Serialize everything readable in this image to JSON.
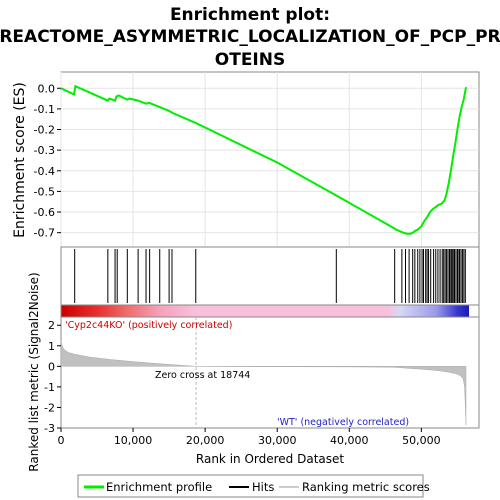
{
  "chart_data": {
    "type": "line",
    "title_lines": [
      "Enrichment plot:",
      "REACTOME_ASYMMETRIC_LOCALIZATION_OF_PCP_PR",
      "OTEINS"
    ],
    "ylabel_es": "Enrichment score (ES)",
    "ylabel_metric": "Ranked list metric (Signal2Noise)",
    "xlabel": "Rank in Ordered Dataset",
    "xlim": [
      0,
      58000
    ],
    "es_ylim": [
      -0.75,
      0.04
    ],
    "metric_ylim": [
      -3,
      2.4
    ],
    "x_ticks": [
      0,
      10000,
      20000,
      30000,
      40000,
      50000
    ],
    "x_tick_labels": [
      "0",
      "10,000",
      "20,000",
      "30,000",
      "40,000",
      "50,000"
    ],
    "es_ticks": [
      0.0,
      -0.1,
      -0.2,
      -0.3,
      -0.4,
      -0.5,
      -0.6,
      -0.7
    ],
    "es_tick_labels": [
      "0.0",
      "-0.1",
      "-0.2",
      "-0.3",
      "-0.4",
      "-0.5",
      "-0.6",
      "-0.7"
    ],
    "metric_ticks": [
      2,
      1,
      0,
      -1,
      -2,
      -3
    ],
    "metric_tick_labels": [
      "2",
      "1",
      "0",
      "-1",
      "-2",
      "-3"
    ],
    "series": [
      {
        "name": "Enrichment profile",
        "color": "#00ee00",
        "x": [
          0,
          1800,
          2000,
          6500,
          6700,
          7500,
          7700,
          8000,
          9200,
          9500,
          10700,
          11800,
          12200,
          15000,
          15500,
          18800,
          30000,
          38200,
          46300,
          46500,
          47500,
          48000,
          48500,
          48800,
          49200,
          49500,
          50000,
          50400,
          50800,
          51200,
          51600,
          52000,
          52400,
          52800,
          53200,
          53500,
          53800,
          54100,
          54400,
          54700,
          55000,
          55300,
          55600,
          55900,
          56200
        ],
        "y": [
          0.0,
          -0.03,
          0.01,
          -0.06,
          -0.05,
          -0.06,
          -0.04,
          -0.035,
          -0.055,
          -0.05,
          -0.06,
          -0.075,
          -0.07,
          -0.11,
          -0.12,
          -0.17,
          -0.36,
          -0.52,
          -0.68,
          -0.685,
          -0.7,
          -0.705,
          -0.705,
          -0.7,
          -0.69,
          -0.685,
          -0.67,
          -0.645,
          -0.625,
          -0.6,
          -0.585,
          -0.575,
          -0.565,
          -0.56,
          -0.545,
          -0.51,
          -0.46,
          -0.4,
          -0.33,
          -0.27,
          -0.2,
          -0.14,
          -0.09,
          -0.05,
          0.005
        ]
      }
    ],
    "hits": [
      1900,
      6500,
      7500,
      7800,
      9200,
      10700,
      11800,
      12300,
      13700,
      15000,
      15400,
      18700,
      38200,
      46300,
      47300,
      47800,
      48300,
      48800,
      49100,
      49500,
      49800,
      50100,
      50300,
      50600,
      50800,
      51000,
      51300,
      51700,
      52000,
      52300,
      52600,
      52900,
      53100,
      53300,
      53500,
      53700,
      53900,
      54000,
      54200,
      54300,
      54500,
      54600,
      54800,
      55000,
      55100,
      55300,
      55500,
      55700,
      55900,
      56100
    ],
    "metric_curve": {
      "x": [
        0,
        200,
        500,
        1000,
        2000,
        4000,
        7000,
        10000,
        14000,
        18744,
        22000,
        30000,
        40000,
        46000,
        46500,
        48000,
        50000,
        52000,
        53000,
        54000,
        54800,
        55400,
        55800,
        56000,
        56200
      ],
      "y": [
        1.25,
        0.95,
        0.8,
        0.68,
        0.58,
        0.45,
        0.33,
        0.23,
        0.12,
        0.0,
        -0.01,
        -0.02,
        -0.03,
        -0.04,
        -0.05,
        -0.09,
        -0.14,
        -0.2,
        -0.24,
        -0.3,
        -0.36,
        -0.45,
        -0.6,
        -1.0,
        -2.85
      ]
    },
    "zero_cross_label": "Zero cross at 18744",
    "zero_cross": 18744,
    "pos_label": "'Cyp2c44KO' (positively correlated)",
    "neg_label": "'WT' (negatively correlated)",
    "colors": {
      "es_line": "#00ee00",
      "hit": "#000000",
      "metric_fill": "#c0c0c0",
      "pos_text": "#cc0000",
      "neg_text": "#2222cc",
      "zero_line": "#bbbbbb"
    },
    "legend": {
      "items": [
        "Enrichment profile",
        "Hits",
        "Ranking metric scores"
      ],
      "placement": "bottom"
    }
  }
}
